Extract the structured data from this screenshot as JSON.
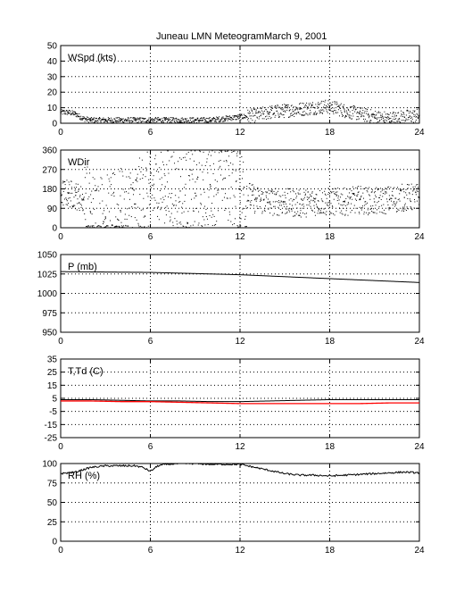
{
  "figure": {
    "title_station": "Juneau LMN Meteogram:",
    "title_date": "March  9, 2001"
  },
  "chart_data": [
    {
      "type": "scatter",
      "label": "WSpd (kts)",
      "xlim": [
        0,
        24
      ],
      "xticks": [
        0,
        6,
        12,
        18,
        24
      ],
      "ylim": [
        0,
        50
      ],
      "yticks": [
        0,
        10,
        20,
        30,
        40,
        50
      ],
      "grid": true,
      "marker_size": 1,
      "series": [
        {
          "color": "#000000",
          "values": [
            [
              0,
              7
            ],
            [
              0.5,
              7
            ],
            [
              1,
              6
            ],
            [
              1.5,
              3
            ],
            [
              2,
              2
            ],
            [
              3,
              2
            ],
            [
              4,
              2
            ],
            [
              5,
              2
            ],
            [
              6,
              2
            ],
            [
              7,
              2
            ],
            [
              8,
              2
            ],
            [
              9,
              2
            ],
            [
              10,
              2
            ],
            [
              11,
              3
            ],
            [
              12,
              4
            ],
            [
              13,
              5
            ],
            [
              14,
              7
            ],
            [
              15,
              8
            ],
            [
              16,
              9
            ],
            [
              17,
              10
            ],
            [
              18,
              11
            ],
            [
              19,
              8
            ],
            [
              20,
              6
            ],
            [
              21,
              4
            ],
            [
              22,
              3
            ],
            [
              23,
              4
            ],
            [
              24,
              5
            ]
          ]
        }
      ]
    },
    {
      "type": "scatter",
      "label": "WDir",
      "xlim": [
        0,
        24
      ],
      "xticks": [
        0,
        6,
        12,
        18,
        24
      ],
      "ylim": [
        0,
        360
      ],
      "yticks": [
        0,
        90,
        180,
        270,
        360
      ],
      "grid": true,
      "marker_size": 1,
      "series": [
        {
          "color": "#000000",
          "values": [
            [
              0,
              160
            ],
            [
              0.5,
              160
            ],
            [
              1,
              150
            ],
            [
              1.5,
              130
            ],
            [
              2,
              70
            ],
            [
              3,
              50
            ],
            [
              4,
              80
            ],
            [
              5,
              110
            ],
            [
              6,
              170
            ],
            [
              7,
              190
            ],
            [
              8,
              170
            ],
            [
              9,
              160
            ],
            [
              10,
              200
            ],
            [
              11,
              230
            ],
            [
              12,
              180
            ],
            [
              13,
              130
            ],
            [
              14,
              120
            ],
            [
              15,
              120
            ],
            [
              16,
              110
            ],
            [
              17,
              120
            ],
            [
              18,
              120
            ],
            [
              19,
              120
            ],
            [
              20,
              130
            ],
            [
              21,
              120
            ],
            [
              22,
              130
            ],
            [
              23,
              140
            ],
            [
              24,
              140
            ]
          ]
        }
      ]
    },
    {
      "type": "line",
      "label": "P (mb)",
      "xlim": [
        0,
        24
      ],
      "xticks": [
        0,
        6,
        12,
        18,
        24
      ],
      "ylim": [
        950,
        1050
      ],
      "yticks": [
        950,
        975,
        1000,
        1025,
        1050
      ],
      "grid": true,
      "series": [
        {
          "color": "#000000",
          "values": [
            [
              0,
              1028
            ],
            [
              6,
              1027
            ],
            [
              12,
              1024
            ],
            [
              18,
              1019
            ],
            [
              24,
              1014
            ]
          ]
        }
      ]
    },
    {
      "type": "line",
      "label": "T,Td (C)",
      "xlim": [
        0,
        24
      ],
      "xticks": [
        0,
        6,
        12,
        18,
        24
      ],
      "ylim": [
        -25,
        35
      ],
      "yticks": [
        -25,
        -15,
        -5,
        5,
        15,
        25,
        35
      ],
      "grid": true,
      "series": [
        {
          "color": "#000000",
          "values": [
            [
              0,
              4
            ],
            [
              2,
              4
            ],
            [
              4,
              3.5
            ],
            [
              6,
              3
            ],
            [
              8,
              3
            ],
            [
              10,
              2.5
            ],
            [
              12,
              2.5
            ],
            [
              14,
              3
            ],
            [
              16,
              3.5
            ],
            [
              18,
              4
            ],
            [
              20,
              4
            ],
            [
              22,
              4
            ],
            [
              24,
              4
            ]
          ]
        },
        {
          "color": "#ff0000",
          "values": [
            [
              0,
              3
            ],
            [
              2,
              3
            ],
            [
              4,
              2.5
            ],
            [
              6,
              2.5
            ],
            [
              8,
              2
            ],
            [
              10,
              1.5
            ],
            [
              12,
              1
            ],
            [
              14,
              1
            ],
            [
              16,
              1
            ],
            [
              18,
              1
            ],
            [
              20,
              1
            ],
            [
              22,
              1.5
            ],
            [
              24,
              1.5
            ]
          ]
        }
      ]
    },
    {
      "type": "line",
      "label": "RH (%)",
      "xlim": [
        0,
        24
      ],
      "xticks": [
        0,
        6,
        12,
        18,
        24
      ],
      "ylim": [
        0,
        100
      ],
      "yticks": [
        0,
        25,
        50,
        75,
        100
      ],
      "grid": true,
      "series": [
        {
          "color": "#000000",
          "values": [
            [
              0,
              87
            ],
            [
              0.5,
              88
            ],
            [
              1,
              89
            ],
            [
              2,
              95
            ],
            [
              3,
              97
            ],
            [
              4,
              97
            ],
            [
              5,
              97
            ],
            [
              5.5,
              95
            ],
            [
              6,
              90
            ],
            [
              6.5,
              97
            ],
            [
              7,
              99
            ],
            [
              8,
              100
            ],
            [
              9,
              100
            ],
            [
              10,
              99
            ],
            [
              11,
              99
            ],
            [
              12,
              99
            ],
            [
              13,
              95
            ],
            [
              14,
              91
            ],
            [
              15,
              87
            ],
            [
              16,
              85
            ],
            [
              17,
              85
            ],
            [
              18,
              84
            ],
            [
              19,
              85
            ],
            [
              20,
              86
            ],
            [
              21,
              87
            ],
            [
              22,
              88
            ],
            [
              23,
              89
            ],
            [
              24,
              88
            ]
          ]
        }
      ]
    }
  ]
}
